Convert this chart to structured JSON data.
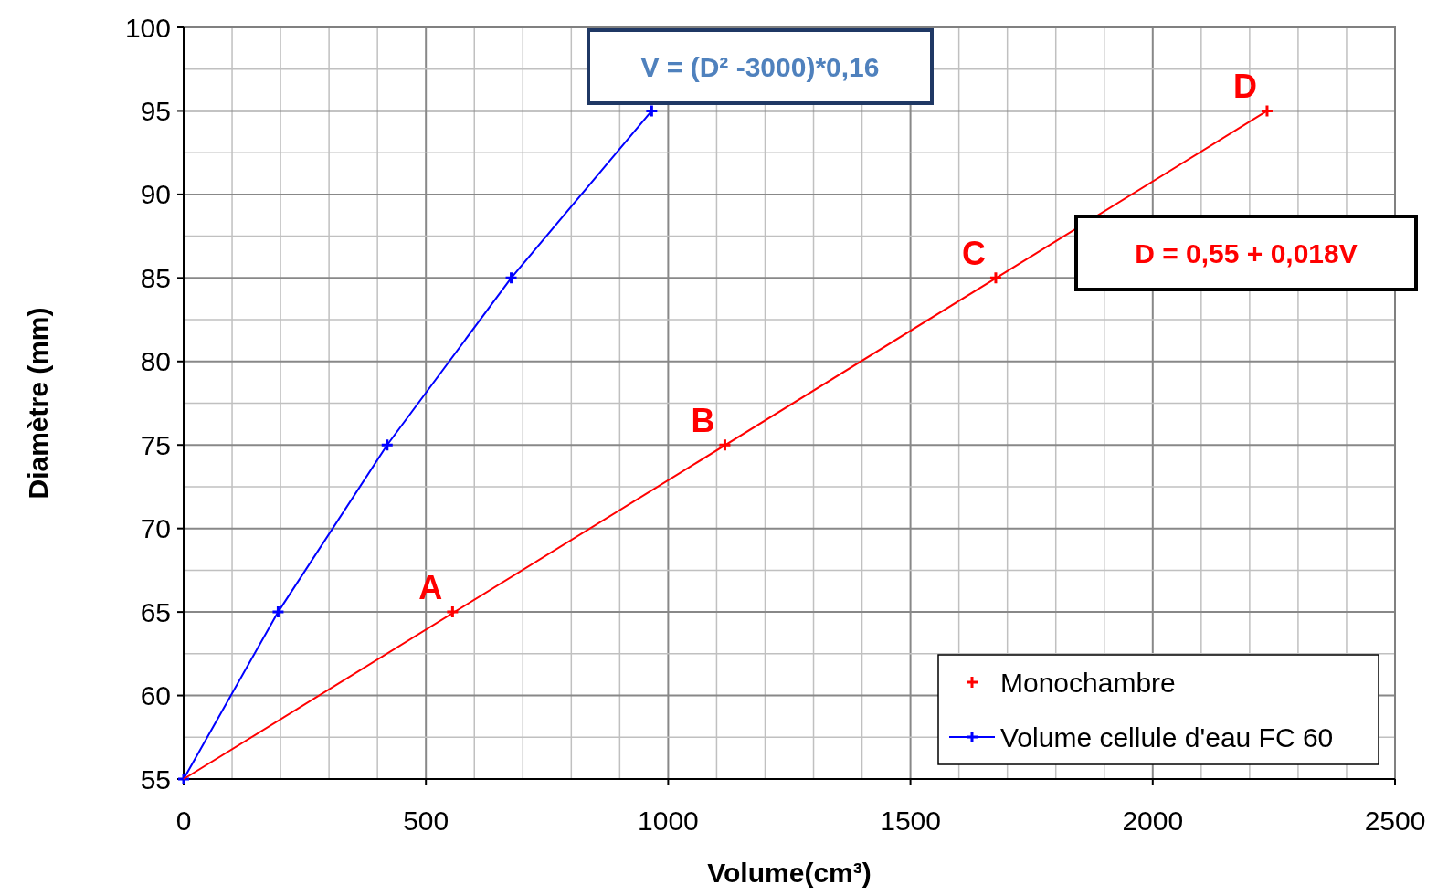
{
  "chart_data": {
    "type": "scatter",
    "xlabel": "Volume(cm³)",
    "ylabel": "Diamètre (mm)",
    "xlim": [
      0,
      2500
    ],
    "ylim": [
      55,
      100
    ],
    "xticks": [
      0,
      {
        "value": 100,
        "label": null
      },
      {
        "value": 200,
        "label": null
      },
      {
        "value": 300,
        "label": null
      },
      {
        "value": 400,
        "label": null
      },
      500,
      {
        "value": 600,
        "label": null
      },
      {
        "value": 700,
        "label": null
      },
      {
        "value": 800,
        "label": null
      },
      {
        "value": 900,
        "label": null
      },
      1000,
      {
        "value": 1100,
        "label": null
      },
      {
        "value": 1200,
        "label": null
      },
      {
        "value": 1300,
        "label": null
      },
      {
        "value": 1400,
        "label": null
      },
      1500,
      {
        "value": 1600,
        "label": null
      },
      {
        "value": 1700,
        "label": null
      },
      {
        "value": 1800,
        "label": null
      },
      {
        "value": 1900,
        "label": null
      },
      2000,
      {
        "value": 2100,
        "label": null
      },
      {
        "value": 2200,
        "label": null
      },
      {
        "value": 2300,
        "label": null
      },
      {
        "value": 2400,
        "label": null
      },
      2500
    ],
    "yticks": [
      55,
      {
        "value": 57.5,
        "label": null
      },
      60,
      {
        "value": 62.5,
        "label": null
      },
      65,
      {
        "value": 67.5,
        "label": null
      },
      70,
      {
        "value": 72.5,
        "label": null
      },
      75,
      {
        "value": 77.5,
        "label": null
      },
      80,
      {
        "value": 82.5,
        "label": null
      },
      85,
      {
        "value": 87.5,
        "label": null
      },
      90,
      {
        "value": 92.5,
        "label": null
      },
      95,
      {
        "value": 97.5,
        "label": null
      },
      100
    ],
    "grid": true,
    "legend": "bottom right",
    "series": [
      {
        "name": "Monochambre",
        "color": "#ff0000",
        "marker": "cross",
        "x": [
          555,
          1117,
          1676,
          2236
        ],
        "values": [
          65,
          75,
          85,
          95
        ]
      },
      {
        "name": "Volume cellule d'eau FC 60",
        "type": "line",
        "color": "#0000ff",
        "marker": "cross",
        "x": [
          0,
          195,
          420,
          676,
          966
        ],
        "values": [
          55,
          65,
          75,
          85,
          95
        ]
      },
      {
        "type": "line",
        "color": "#ff0000",
        "marker": "none",
        "x": [
          0,
          2236
        ],
        "values": [
          55,
          95
        ]
      }
    ],
    "annotations": [
      {
        "text": "A",
        "x": 555,
        "y": 65
      },
      {
        "text": "B",
        "x": 1117,
        "y": 75
      },
      {
        "text": "C",
        "x": 1676,
        "y": 85
      },
      {
        "text": "D",
        "x": 2236,
        "y": 95
      },
      "V = (D² -3000)*0,16",
      "D = 0,55 + 0,018V"
    ]
  }
}
